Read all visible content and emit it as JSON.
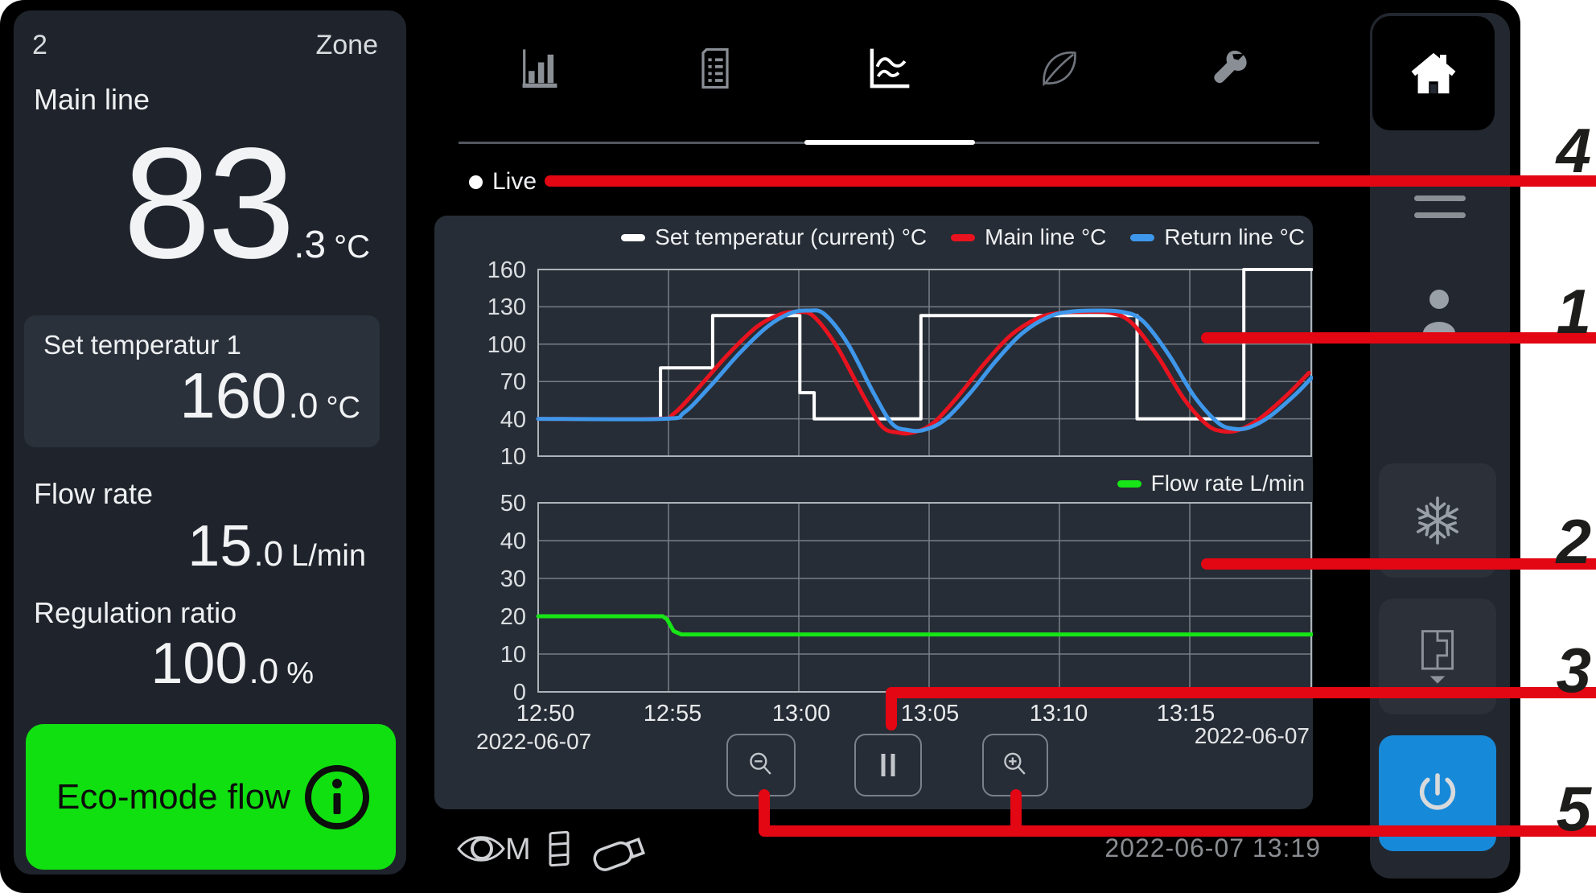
{
  "colors": {
    "annotation_red": "#e30613",
    "eco_green": "#10e010",
    "power_blue": "#1789d9",
    "set_temp_white": "#ffffff",
    "main_line_red": "#e8131f",
    "return_line_blue": "#3e97ea",
    "flow_green": "#17e517"
  },
  "left_panel": {
    "zone_number": "2",
    "zone_label": "Zone",
    "main_line": {
      "label": "Main line",
      "value": "83",
      "decimal": ".3",
      "unit": "°C"
    },
    "set_temperature": {
      "label": "Set temperatur 1",
      "value": "160",
      "decimal": ".0",
      "unit": "°C"
    },
    "flow_rate": {
      "label": "Flow rate",
      "value": "15",
      "decimal": ".0",
      "unit": "L/min"
    },
    "regulation_ratio": {
      "label": "Regulation ratio",
      "value": "100",
      "decimal": ".0",
      "unit": "%"
    },
    "eco_button": {
      "label": "Eco-mode flow",
      "icon": "info-icon"
    }
  },
  "tab_bar": {
    "tabs": [
      {
        "name": "bar-chart-tab",
        "active": false
      },
      {
        "name": "report-tab",
        "active": false
      },
      {
        "name": "trend-tab",
        "active": true
      },
      {
        "name": "eco-leaf-tab",
        "active": false
      },
      {
        "name": "service-wrench-tab",
        "active": false
      }
    ],
    "home_icon": "home-icon"
  },
  "live": {
    "label": "Live"
  },
  "chart_data": [
    {
      "type": "line",
      "title": "Temperature trend",
      "legend": [
        "Set temperatur (current) °C",
        "Main line °C",
        "Return line °C"
      ],
      "legend_position": "top-right",
      "ylim": [
        10,
        160
      ],
      "yticks": [
        "160",
        "130",
        "100",
        "70",
        "40",
        "10"
      ],
      "xticks": [
        "12:50",
        "12:55",
        "13:00",
        "13:05",
        "13:10",
        "13:15"
      ],
      "x_range_minutes": [
        0,
        29.7
      ],
      "grid": true,
      "series": [
        {
          "name": "Set temperatur (current) °C",
          "color": "#ffffff",
          "width": 4,
          "smooth": false,
          "points": [
            [
              0,
              40
            ],
            [
              4.7,
              40
            ],
            [
              4.7,
              81
            ],
            [
              6.7,
              81
            ],
            [
              6.7,
              123
            ],
            [
              10.05,
              123
            ],
            [
              10.05,
              61
            ],
            [
              10.6,
              61
            ],
            [
              10.6,
              40
            ],
            [
              14.7,
              40
            ],
            [
              14.7,
              123
            ],
            [
              23,
              123
            ],
            [
              23,
              40
            ],
            [
              27.1,
              40
            ],
            [
              27.1,
              160
            ],
            [
              29.7,
              160
            ]
          ]
        },
        {
          "name": "Main line °C",
          "color": "#e8131f",
          "width": 5,
          "smooth": true,
          "points": [
            [
              0,
              40
            ],
            [
              4.5,
              40
            ],
            [
              5.2,
              44
            ],
            [
              6.2,
              66
            ],
            [
              7.3,
              92
            ],
            [
              8.4,
              114
            ],
            [
              9.3,
              124
            ],
            [
              10,
              126
            ],
            [
              10.6,
              122
            ],
            [
              11.5,
              97
            ],
            [
              12.5,
              58
            ],
            [
              13.2,
              34
            ],
            [
              13.8,
              29
            ],
            [
              14.4,
              29
            ],
            [
              15.2,
              37
            ],
            [
              16.2,
              60
            ],
            [
              17.2,
              86
            ],
            [
              18.2,
              108
            ],
            [
              19.2,
              121
            ],
            [
              20,
              125
            ],
            [
              21,
              126
            ],
            [
              22,
              125
            ],
            [
              22.8,
              117
            ],
            [
              23.8,
              90
            ],
            [
              24.8,
              56
            ],
            [
              25.7,
              35
            ],
            [
              26.3,
              30
            ],
            [
              26.9,
              31
            ],
            [
              27.7,
              40
            ],
            [
              28.7,
              58
            ],
            [
              29.6,
              77
            ]
          ]
        },
        {
          "name": "Return line °C",
          "color": "#3e97ea",
          "width": 5,
          "smooth": true,
          "points": [
            [
              0,
              40
            ],
            [
              4.8,
              40
            ],
            [
              5.6,
              45
            ],
            [
              6.6,
              66
            ],
            [
              7.7,
              92
            ],
            [
              8.8,
              114
            ],
            [
              9.7,
              125
            ],
            [
              10.4,
              127
            ],
            [
              11,
              124
            ],
            [
              11.9,
              100
            ],
            [
              12.9,
              60
            ],
            [
              13.6,
              36
            ],
            [
              14.2,
              31
            ],
            [
              14.8,
              31
            ],
            [
              15.6,
              39
            ],
            [
              16.6,
              61
            ],
            [
              17.6,
              87
            ],
            [
              18.6,
              109
            ],
            [
              19.6,
              122
            ],
            [
              20.4,
              126
            ],
            [
              21.4,
              127
            ],
            [
              22.4,
              126
            ],
            [
              23.2,
              119
            ],
            [
              24.2,
              92
            ],
            [
              25.2,
              58
            ],
            [
              26.1,
              37
            ],
            [
              26.7,
              32
            ],
            [
              27.3,
              33
            ],
            [
              28.1,
              42
            ],
            [
              29.1,
              60
            ],
            [
              29.7,
              73
            ]
          ]
        }
      ]
    },
    {
      "type": "line",
      "title": "Flow trend",
      "legend": [
        "Flow rate L/min"
      ],
      "legend_position": "top-right",
      "ylim": [
        0,
        50
      ],
      "yticks": [
        "50",
        "40",
        "30",
        "20",
        "10",
        "0"
      ],
      "xticks": [
        "12:50",
        "12:55",
        "13:00",
        "13:05",
        "13:10",
        "13:15"
      ],
      "x_start_date": "2022-06-07",
      "x_end_date": "2022-06-07",
      "x_range_minutes": [
        0,
        29.7
      ],
      "grid": true,
      "series": [
        {
          "name": "Flow rate L/min",
          "color": "#17e517",
          "width": 5,
          "smooth": false,
          "points": [
            [
              0,
              20
            ],
            [
              4.78,
              20
            ],
            [
              4.95,
              19.2
            ],
            [
              5.2,
              16.1
            ],
            [
              5.5,
              15.2
            ],
            [
              29.7,
              15.2
            ]
          ]
        }
      ]
    }
  ],
  "controls": {
    "icons": [
      "zoom-out",
      "pause",
      "zoom-in"
    ]
  },
  "status_bar": {
    "icons": [
      "monitor-eye-m",
      "flap",
      "usb-drive"
    ],
    "monitor_letter": "M",
    "datetime": "2022-06-07  13:19"
  },
  "sidebar": {
    "icons": [
      "home",
      "menu",
      "user",
      "snowflake",
      "mold-change",
      "power"
    ]
  },
  "annotations": {
    "color": "#e30613",
    "numbers": [
      {
        "label": "4",
        "target": "live-indicator"
      },
      {
        "label": "1",
        "target": "temperature-chart"
      },
      {
        "label": "2",
        "target": "flow-chart"
      },
      {
        "label": "3",
        "target": "pause-button"
      },
      {
        "label": "5",
        "target": "zoom-buttons"
      }
    ]
  }
}
